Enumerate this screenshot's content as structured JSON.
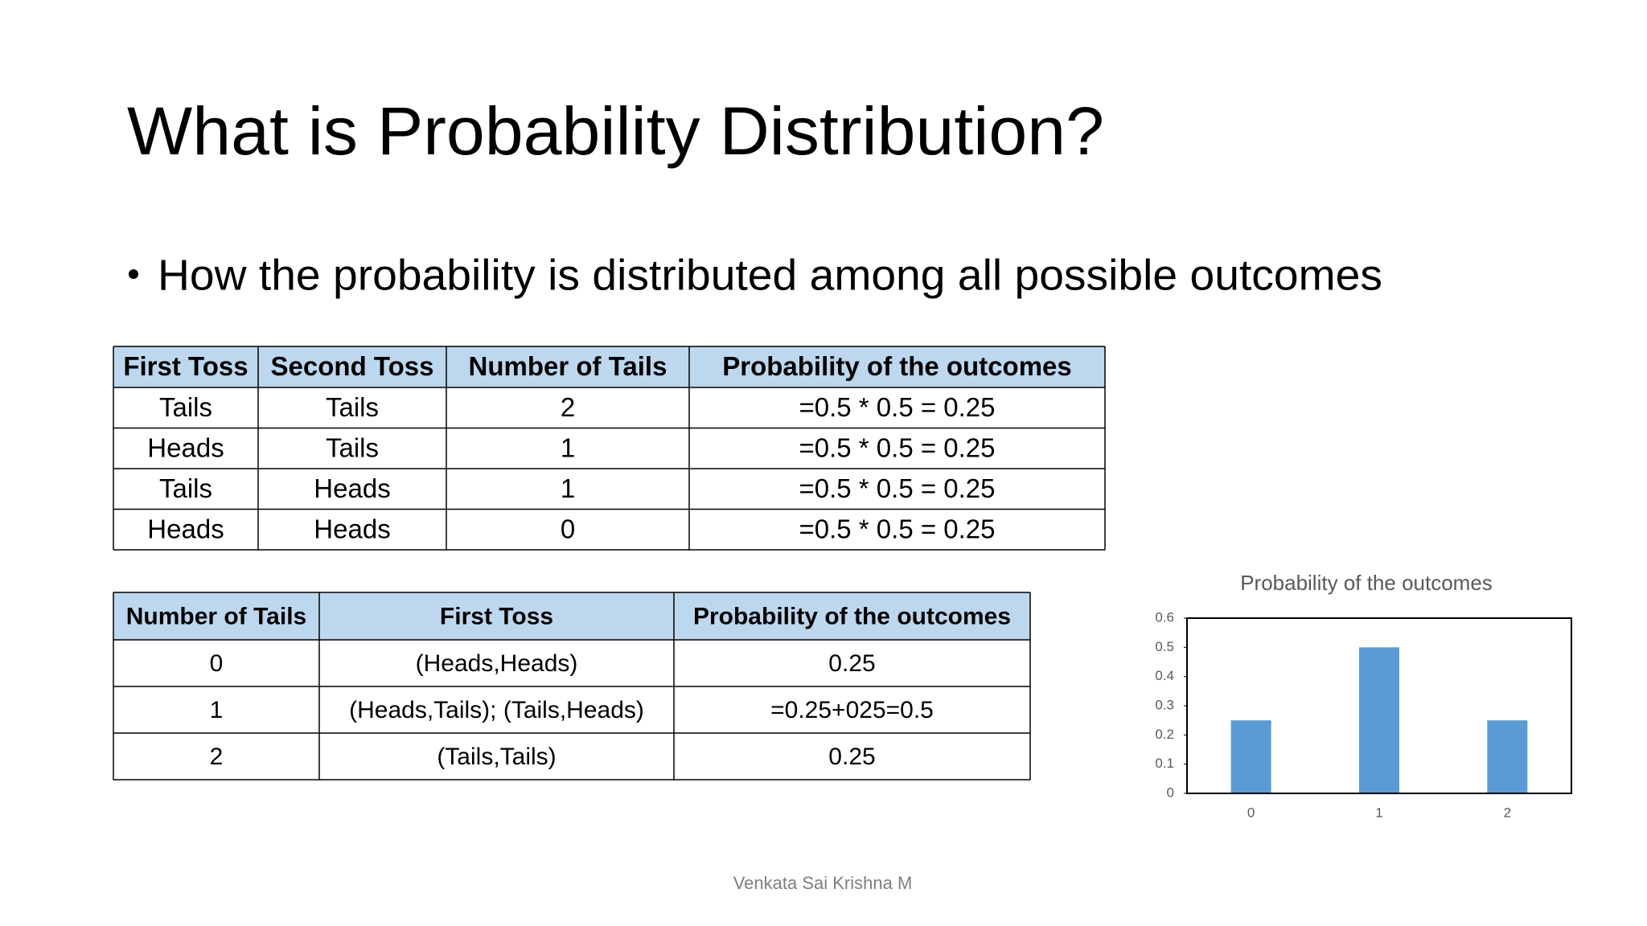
{
  "title": "What is Probability Distribution?",
  "bullet": "How the probability is distributed among all possible outcomes",
  "table1": {
    "header": [
      "First Toss",
      "Second Toss",
      "Number of Tails",
      "Probability of the outcomes"
    ],
    "rows": [
      [
        "Tails",
        "Tails",
        "2",
        "=0.5 * 0.5 = 0.25"
      ],
      [
        "Heads",
        "Tails",
        "1",
        "=0.5 * 0.5 = 0.25"
      ],
      [
        "Tails",
        "Heads",
        "1",
        "=0.5 * 0.5 = 0.25"
      ],
      [
        "Heads",
        "Heads",
        "0",
        "=0.5 * 0.5 = 0.25"
      ]
    ]
  },
  "table2": {
    "header": [
      "Number of Tails",
      "First Toss",
      "Probability of the outcomes"
    ],
    "rows": [
      [
        "0",
        "(Heads,Heads)",
        "0.25"
      ],
      [
        "1",
        "(Heads,Tails); (Tails,Heads)",
        "=0.25+025=0.5"
      ],
      [
        "2",
        "(Tails,Tails)",
        "0.25"
      ]
    ]
  },
  "chart_data": {
    "type": "bar",
    "title": "Probability of the outcomes",
    "categories": [
      "0",
      "1",
      "2"
    ],
    "values": [
      0.25,
      0.5,
      0.25
    ],
    "color": "#5b9bd5",
    "ylim": [
      0,
      0.6
    ],
    "yticks": [
      0,
      0.1,
      0.2,
      0.3,
      0.4,
      0.5,
      0.6
    ],
    "grid": false
  },
  "footer": "Venkata Sai Krishna M"
}
